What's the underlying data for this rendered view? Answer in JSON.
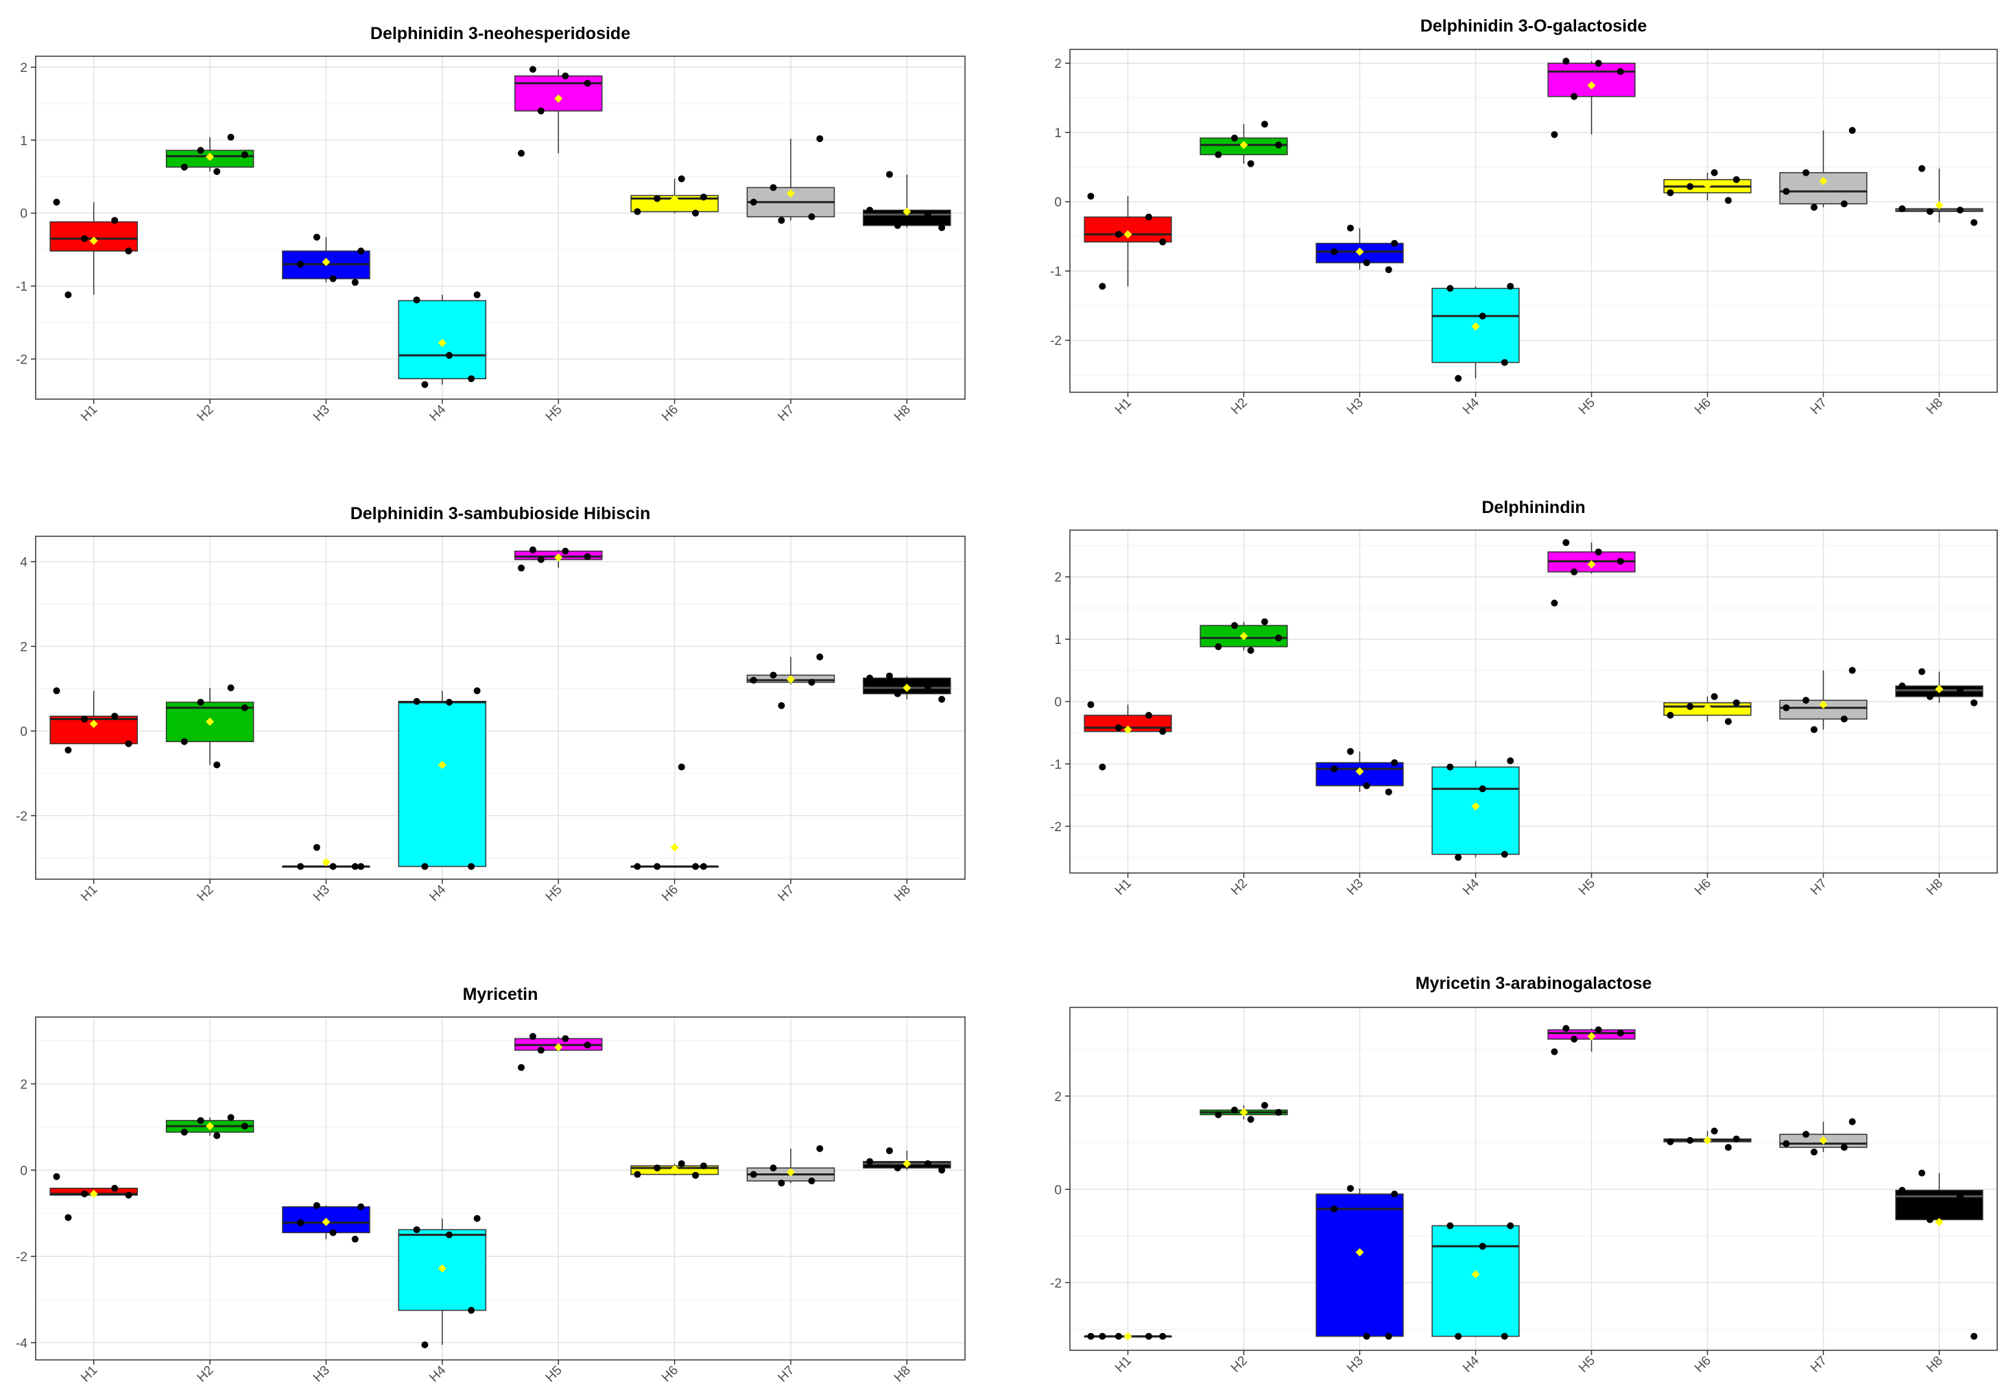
{
  "figure": {
    "group_colors": {
      "H1": "#ff0000",
      "H2": "#00c000",
      "H3": "#0000ff",
      "H4": "#00ffff",
      "H5": "#ff00ff",
      "H6": "#ffff00",
      "H7": "#bebebe",
      "H8": "#000000"
    },
    "mean_marker_color": "#ffff00",
    "point_color": "#000000"
  },
  "chart_data": [
    {
      "type": "box",
      "title": "Delphinidin 3-neohesperidoside",
      "categories": [
        "H1",
        "H2",
        "H3",
        "H4",
        "H5",
        "H6",
        "H7",
        "H8"
      ],
      "yticks": [
        -2,
        -1,
        0,
        1,
        2
      ],
      "ylim": [
        -2.55,
        2.15
      ],
      "boxes": [
        {
          "q1": -0.52,
          "median": -0.35,
          "q3": -0.12,
          "whisker_low": -1.12,
          "whisker_high": 0.15,
          "mean": -0.38,
          "points": [
            0.15,
            -0.1,
            -0.35,
            -0.52,
            -1.12
          ]
        },
        {
          "q1": 0.63,
          "median": 0.78,
          "q3": 0.86,
          "whisker_low": 0.57,
          "whisker_high": 1.04,
          "mean": 0.77,
          "points": [
            1.04,
            0.86,
            0.8,
            0.63,
            0.57
          ]
        },
        {
          "q1": -0.9,
          "median": -0.7,
          "q3": -0.52,
          "whisker_low": -0.95,
          "whisker_high": -0.33,
          "mean": -0.67,
          "points": [
            -0.33,
            -0.52,
            -0.7,
            -0.9,
            -0.95
          ]
        },
        {
          "q1": -2.27,
          "median": -1.95,
          "q3": -1.2,
          "whisker_low": -2.35,
          "whisker_high": -1.12,
          "mean": -1.78,
          "points": [
            -1.12,
            -1.19,
            -1.95,
            -2.27,
            -2.35
          ]
        },
        {
          "q1": 1.4,
          "median": 1.78,
          "q3": 1.88,
          "whisker_low": 0.82,
          "whisker_high": 1.97,
          "mean": 1.57,
          "points": [
            1.97,
            1.88,
            1.78,
            1.4,
            0.82
          ]
        },
        {
          "q1": 0.02,
          "median": 0.2,
          "q3": 0.24,
          "whisker_low": 0.0,
          "whisker_high": 0.47,
          "mean": 0.19,
          "points": [
            0.47,
            0.22,
            0.2,
            0.02,
            0.0
          ]
        },
        {
          "q1": -0.05,
          "median": 0.15,
          "q3": 0.35,
          "whisker_low": -0.1,
          "whisker_high": 1.02,
          "mean": 0.27,
          "points": [
            1.02,
            0.35,
            0.15,
            -0.05,
            -0.1
          ]
        },
        {
          "q1": -0.17,
          "median": -0.02,
          "q3": 0.04,
          "whisker_low": -0.2,
          "whisker_high": 0.53,
          "mean": 0.02,
          "points": [
            0.53,
            0.04,
            -0.02,
            -0.17,
            -0.2
          ]
        }
      ]
    },
    {
      "type": "box",
      "title": "Delphinidin 3-O-galactoside",
      "categories": [
        "H1",
        "H2",
        "H3",
        "H4",
        "H5",
        "H6",
        "H7",
        "H8"
      ],
      "yticks": [
        -2,
        -1,
        0,
        1,
        2
      ],
      "ylim": [
        -2.75,
        2.2
      ],
      "boxes": [
        {
          "q1": -0.58,
          "median": -0.47,
          "q3": -0.22,
          "whisker_low": -1.22,
          "whisker_high": 0.08,
          "mean": -0.47,
          "points": [
            0.08,
            -0.22,
            -0.47,
            -0.58,
            -1.22
          ]
        },
        {
          "q1": 0.68,
          "median": 0.82,
          "q3": 0.92,
          "whisker_low": 0.55,
          "whisker_high": 1.12,
          "mean": 0.82,
          "points": [
            1.12,
            0.92,
            0.82,
            0.68,
            0.55
          ]
        },
        {
          "q1": -0.88,
          "median": -0.72,
          "q3": -0.6,
          "whisker_low": -0.98,
          "whisker_high": -0.38,
          "mean": -0.72,
          "points": [
            -0.38,
            -0.6,
            -0.72,
            -0.88,
            -0.98
          ]
        },
        {
          "q1": -2.32,
          "median": -1.65,
          "q3": -1.25,
          "whisker_low": -2.55,
          "whisker_high": -1.22,
          "mean": -1.8,
          "points": [
            -1.22,
            -1.25,
            -1.65,
            -2.32,
            -2.55
          ]
        },
        {
          "q1": 1.52,
          "median": 1.88,
          "q3": 2.0,
          "whisker_low": 0.97,
          "whisker_high": 2.03,
          "mean": 1.68,
          "points": [
            2.03,
            2.0,
            1.88,
            1.52,
            0.97
          ]
        },
        {
          "q1": 0.13,
          "median": 0.22,
          "q3": 0.32,
          "whisker_low": 0.02,
          "whisker_high": 0.42,
          "mean": 0.24,
          "points": [
            0.42,
            0.32,
            0.22,
            0.13,
            0.02
          ]
        },
        {
          "q1": -0.03,
          "median": 0.15,
          "q3": 0.42,
          "whisker_low": -0.08,
          "whisker_high": 1.03,
          "mean": 0.3,
          "points": [
            1.03,
            0.42,
            0.15,
            -0.03,
            -0.08
          ]
        },
        {
          "q1": -0.14,
          "median": -0.12,
          "q3": -0.1,
          "whisker_low": -0.3,
          "whisker_high": 0.48,
          "mean": -0.05,
          "points": [
            0.48,
            -0.1,
            -0.12,
            -0.14,
            -0.3
          ]
        }
      ]
    },
    {
      "type": "box",
      "title": "Delphinidin 3-sambubioside Hibiscin",
      "categories": [
        "H1",
        "H2",
        "H3",
        "H4",
        "H5",
        "H6",
        "H7",
        "H8"
      ],
      "yticks": [
        -2,
        0,
        2,
        4
      ],
      "ylim": [
        -3.5,
        4.6
      ],
      "boxes": [
        {
          "q1": -0.3,
          "median": 0.28,
          "q3": 0.35,
          "whisker_low": -0.3,
          "whisker_high": 0.95,
          "mean": 0.17,
          "points": [
            0.95,
            0.35,
            0.28,
            -0.3,
            -0.45
          ]
        },
        {
          "q1": -0.25,
          "median": 0.55,
          "q3": 0.68,
          "whisker_low": -0.8,
          "whisker_high": 1.02,
          "mean": 0.22,
          "points": [
            1.02,
            0.68,
            0.55,
            -0.25,
            -0.8
          ]
        },
        {
          "q1": -3.2,
          "median": -3.2,
          "q3": -3.2,
          "whisker_low": -3.2,
          "whisker_high": -3.2,
          "mean": -3.1,
          "points": [
            -2.75,
            -3.2,
            -3.2,
            -3.2,
            -3.2
          ]
        },
        {
          "q1": -3.2,
          "median": 0.68,
          "q3": 0.7,
          "whisker_low": -3.2,
          "whisker_high": 0.95,
          "mean": -0.8,
          "points": [
            0.95,
            0.7,
            0.68,
            -3.2,
            -3.2
          ]
        },
        {
          "q1": 4.05,
          "median": 4.12,
          "q3": 4.25,
          "whisker_low": 3.85,
          "whisker_high": 4.28,
          "mean": 4.1,
          "points": [
            4.28,
            4.25,
            4.12,
            4.05,
            3.85
          ]
        },
        {
          "q1": -3.2,
          "median": -3.2,
          "q3": -3.2,
          "whisker_low": -3.2,
          "whisker_high": -3.2,
          "mean": -2.75,
          "points": [
            -0.85,
            -3.2,
            -3.2,
            -3.2,
            -3.2
          ]
        },
        {
          "q1": 1.15,
          "median": 1.2,
          "q3": 1.32,
          "whisker_low": 1.1,
          "whisker_high": 1.75,
          "mean": 1.22,
          "points": [
            1.75,
            1.32,
            1.2,
            1.15,
            0.6
          ]
        },
        {
          "q1": 0.88,
          "median": 1.02,
          "q3": 1.25,
          "whisker_low": 0.75,
          "whisker_high": 1.3,
          "mean": 1.02,
          "points": [
            1.3,
            1.25,
            1.02,
            0.88,
            0.75
          ]
        }
      ]
    },
    {
      "type": "box",
      "title": "Delphinindin",
      "categories": [
        "H1",
        "H2",
        "H3",
        "H4",
        "H5",
        "H6",
        "H7",
        "H8"
      ],
      "yticks": [
        -2,
        -1,
        0,
        1,
        2
      ],
      "ylim": [
        -2.75,
        2.75
      ],
      "boxes": [
        {
          "q1": -0.48,
          "median": -0.42,
          "q3": -0.22,
          "whisker_low": -0.48,
          "whisker_high": -0.05,
          "mean": -0.45,
          "points": [
            -0.05,
            -0.22,
            -0.42,
            -0.48,
            -1.05
          ]
        },
        {
          "q1": 0.88,
          "median": 1.02,
          "q3": 1.22,
          "whisker_low": 0.82,
          "whisker_high": 1.28,
          "mean": 1.05,
          "points": [
            1.28,
            1.22,
            1.02,
            0.88,
            0.82
          ]
        },
        {
          "q1": -1.35,
          "median": -1.08,
          "q3": -0.98,
          "whisker_low": -1.45,
          "whisker_high": -0.8,
          "mean": -1.12,
          "points": [
            -0.8,
            -0.98,
            -1.08,
            -1.35,
            -1.45
          ]
        },
        {
          "q1": -2.45,
          "median": -1.4,
          "q3": -1.05,
          "whisker_low": -2.5,
          "whisker_high": -0.95,
          "mean": -1.68,
          "points": [
            -0.95,
            -1.05,
            -1.4,
            -2.45,
            -2.5
          ]
        },
        {
          "q1": 2.08,
          "median": 2.25,
          "q3": 2.4,
          "whisker_low": 2.05,
          "whisker_high": 2.55,
          "mean": 2.2,
          "points": [
            2.55,
            2.4,
            2.25,
            2.08,
            1.58
          ]
        },
        {
          "q1": -0.22,
          "median": -0.08,
          "q3": -0.02,
          "whisker_low": -0.32,
          "whisker_high": 0.08,
          "mean": -0.1,
          "points": [
            0.08,
            -0.02,
            -0.08,
            -0.22,
            -0.32
          ]
        },
        {
          "q1": -0.28,
          "median": -0.1,
          "q3": 0.02,
          "whisker_low": -0.45,
          "whisker_high": 0.5,
          "mean": -0.05,
          "points": [
            0.5,
            0.02,
            -0.1,
            -0.28,
            -0.45
          ]
        },
        {
          "q1": 0.08,
          "median": 0.18,
          "q3": 0.25,
          "whisker_low": -0.02,
          "whisker_high": 0.48,
          "mean": 0.2,
          "points": [
            0.48,
            0.25,
            0.18,
            0.08,
            -0.02
          ]
        }
      ]
    },
    {
      "type": "box",
      "title": "Myricetin",
      "categories": [
        "H1",
        "H2",
        "H3",
        "H4",
        "H5",
        "H6",
        "H7",
        "H8"
      ],
      "yticks": [
        -4,
        -2,
        0,
        2
      ],
      "ylim": [
        -4.4,
        3.55
      ],
      "boxes": [
        {
          "q1": -0.58,
          "median": -0.55,
          "q3": -0.42,
          "whisker_low": -0.58,
          "whisker_high": -0.42,
          "mean": -0.55,
          "points": [
            -0.15,
            -0.42,
            -0.55,
            -0.58,
            -1.1
          ]
        },
        {
          "q1": 0.88,
          "median": 1.02,
          "q3": 1.15,
          "whisker_low": 0.8,
          "whisker_high": 1.22,
          "mean": 1.02,
          "points": [
            1.22,
            1.15,
            1.02,
            0.88,
            0.8
          ]
        },
        {
          "q1": -1.45,
          "median": -1.22,
          "q3": -0.85,
          "whisker_low": -1.6,
          "whisker_high": -0.82,
          "mean": -1.2,
          "points": [
            -0.82,
            -0.85,
            -1.22,
            -1.45,
            -1.6
          ]
        },
        {
          "q1": -3.25,
          "median": -1.5,
          "q3": -1.38,
          "whisker_low": -4.05,
          "whisker_high": -1.12,
          "mean": -2.28,
          "points": [
            -1.12,
            -1.38,
            -1.5,
            -3.25,
            -4.05
          ]
        },
        {
          "q1": 2.78,
          "median": 2.9,
          "q3": 3.05,
          "whisker_low": 2.75,
          "whisker_high": 3.1,
          "mean": 2.85,
          "points": [
            3.1,
            3.05,
            2.9,
            2.78,
            2.38
          ]
        },
        {
          "q1": -0.1,
          "median": 0.05,
          "q3": 0.1,
          "whisker_low": -0.12,
          "whisker_high": 0.15,
          "mean": 0.02,
          "points": [
            0.15,
            0.1,
            0.05,
            -0.1,
            -0.12
          ]
        },
        {
          "q1": -0.25,
          "median": -0.1,
          "q3": 0.05,
          "whisker_low": -0.3,
          "whisker_high": 0.5,
          "mean": -0.05,
          "points": [
            0.5,
            0.05,
            -0.1,
            -0.25,
            -0.3
          ]
        },
        {
          "q1": 0.05,
          "median": 0.15,
          "q3": 0.2,
          "whisker_low": 0.0,
          "whisker_high": 0.45,
          "mean": 0.15,
          "points": [
            0.45,
            0.2,
            0.15,
            0.05,
            0.0
          ]
        }
      ]
    },
    {
      "type": "box",
      "title": "Myricetin 3-arabinogalactose",
      "categories": [
        "H1",
        "H2",
        "H3",
        "H4",
        "H5",
        "H6",
        "H7",
        "H8"
      ],
      "yticks": [
        -2,
        0,
        2
      ],
      "ylim": [
        -3.45,
        3.9
      ],
      "boxes": [
        {
          "q1": -3.15,
          "median": -3.15,
          "q3": -3.15,
          "whisker_low": -3.15,
          "whisker_high": -3.15,
          "mean": -3.15,
          "points": [
            -3.15,
            -3.15,
            -3.15,
            -3.15,
            -3.15
          ]
        },
        {
          "q1": 1.6,
          "median": 1.65,
          "q3": 1.7,
          "whisker_low": 1.5,
          "whisker_high": 1.8,
          "mean": 1.65,
          "points": [
            1.8,
            1.7,
            1.65,
            1.6,
            1.5
          ]
        },
        {
          "q1": -3.15,
          "median": -0.42,
          "q3": -0.1,
          "whisker_low": -3.15,
          "whisker_high": 0.02,
          "mean": -1.35,
          "points": [
            0.02,
            -0.1,
            -0.42,
            -3.15,
            -3.15
          ]
        },
        {
          "q1": -3.15,
          "median": -1.22,
          "q3": -0.78,
          "whisker_low": -3.15,
          "whisker_high": -0.78,
          "mean": -1.82,
          "points": [
            -0.78,
            -0.78,
            -1.22,
            -3.15,
            -3.15
          ]
        },
        {
          "q1": 3.22,
          "median": 3.35,
          "q3": 3.42,
          "whisker_low": 2.95,
          "whisker_high": 3.45,
          "mean": 3.28,
          "points": [
            3.45,
            3.42,
            3.35,
            3.22,
            2.95
          ]
        },
        {
          "q1": 1.02,
          "median": 1.05,
          "q3": 1.08,
          "whisker_low": 1.0,
          "whisker_high": 1.25,
          "mean": 1.05,
          "points": [
            1.25,
            1.08,
            1.05,
            1.02,
            0.9
          ]
        },
        {
          "q1": 0.9,
          "median": 0.98,
          "q3": 1.18,
          "whisker_low": 0.8,
          "whisker_high": 1.45,
          "mean": 1.05,
          "points": [
            1.45,
            1.18,
            0.98,
            0.9,
            0.8
          ]
        },
        {
          "q1": -0.65,
          "median": -0.15,
          "q3": -0.02,
          "whisker_low": -0.65,
          "whisker_high": 0.35,
          "mean": -0.7,
          "points": [
            0.35,
            -0.02,
            -0.15,
            -0.65,
            -3.15
          ]
        }
      ]
    }
  ]
}
